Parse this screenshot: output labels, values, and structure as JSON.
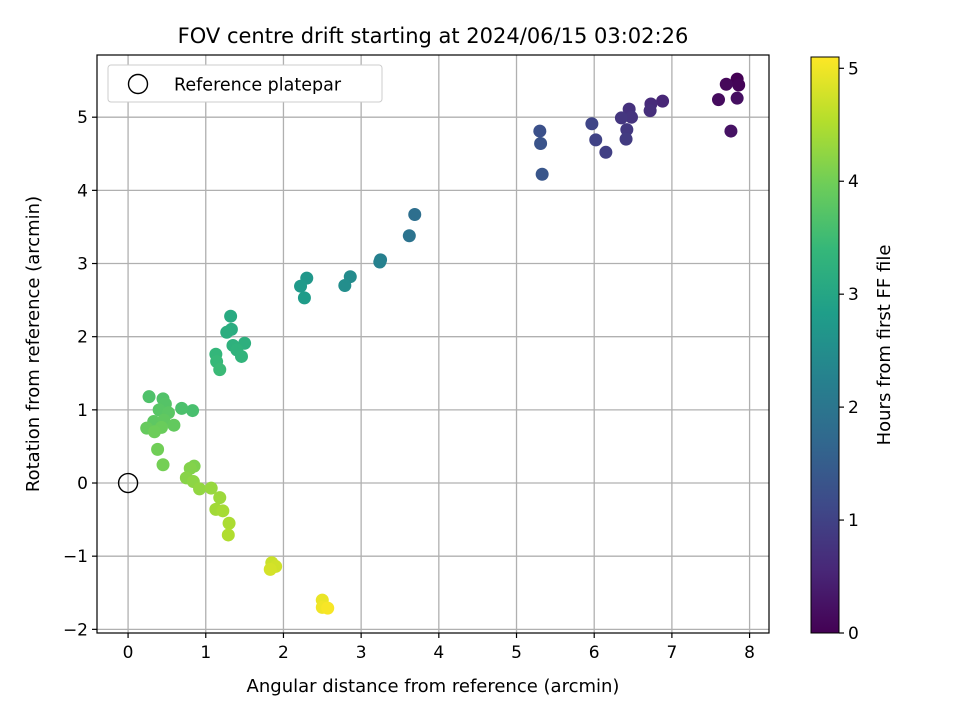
{
  "chart_data": {
    "type": "scatter",
    "title": "FOV centre drift starting at 2024/06/15 03:02:26",
    "xlabel": "Angular distance from reference (arcmin)",
    "ylabel": "Rotation from reference (arcmin)",
    "xlim": [
      -0.4,
      8.25
    ],
    "ylim": [
      -2.05,
      5.85
    ],
    "xticks": [
      0,
      1,
      2,
      3,
      4,
      5,
      6,
      7,
      8
    ],
    "xtick_labels": [
      "0",
      "1",
      "2",
      "3",
      "4",
      "5",
      "6",
      "7",
      "8"
    ],
    "yticks": [
      -2,
      -1,
      0,
      1,
      2,
      3,
      4,
      5
    ],
    "ytick_labels": [
      "−2",
      "−1",
      "0",
      "1",
      "2",
      "3",
      "4",
      "5"
    ],
    "grid": true,
    "legend": {
      "position": "top-left",
      "entries": [
        "Reference platepar"
      ]
    },
    "reference_point": {
      "label": "Reference platepar",
      "x": 0,
      "y": 0,
      "marker": "open-circle"
    },
    "colorbar": {
      "label": "Hours from first FF file",
      "colormap": "viridis",
      "range": [
        0,
        5.1
      ],
      "ticks": [
        0,
        1,
        2,
        3,
        4,
        5
      ],
      "tick_labels": [
        "0",
        "1",
        "2",
        "3",
        "4",
        "5"
      ]
    },
    "series": [
      {
        "points": [
          {
            "x": 7.84,
            "y": 5.52,
            "c": 0.0
          },
          {
            "x": 7.86,
            "y": 5.44,
            "c": 0.05
          },
          {
            "x": 7.7,
            "y": 5.45,
            "c": 0.1
          },
          {
            "x": 7.6,
            "y": 5.24,
            "c": 0.15
          },
          {
            "x": 7.84,
            "y": 5.26,
            "c": 0.2
          },
          {
            "x": 7.76,
            "y": 4.81,
            "c": 0.25
          },
          {
            "x": 6.88,
            "y": 5.22,
            "c": 0.55
          },
          {
            "x": 6.73,
            "y": 5.18,
            "c": 0.62
          },
          {
            "x": 6.72,
            "y": 5.09,
            "c": 0.68
          },
          {
            "x": 6.45,
            "y": 5.11,
            "c": 0.72
          },
          {
            "x": 6.48,
            "y": 5.0,
            "c": 0.76
          },
          {
            "x": 6.35,
            "y": 4.99,
            "c": 0.8
          },
          {
            "x": 6.42,
            "y": 4.83,
            "c": 0.84
          },
          {
            "x": 6.41,
            "y": 4.7,
            "c": 0.88
          },
          {
            "x": 6.15,
            "y": 4.52,
            "c": 0.95
          },
          {
            "x": 6.02,
            "y": 4.69,
            "c": 1.0
          },
          {
            "x": 5.97,
            "y": 4.91,
            "c": 1.05
          },
          {
            "x": 5.3,
            "y": 4.81,
            "c": 1.25
          },
          {
            "x": 5.31,
            "y": 4.64,
            "c": 1.3
          },
          {
            "x": 5.33,
            "y": 4.22,
            "c": 1.36
          },
          {
            "x": 3.69,
            "y": 3.67,
            "c": 1.85
          },
          {
            "x": 3.62,
            "y": 3.38,
            "c": 1.95
          },
          {
            "x": 3.25,
            "y": 3.05,
            "c": 2.2
          },
          {
            "x": 3.24,
            "y": 3.02,
            "c": 2.25
          },
          {
            "x": 2.86,
            "y": 2.82,
            "c": 2.45
          },
          {
            "x": 2.79,
            "y": 2.7,
            "c": 2.5
          },
          {
            "x": 2.3,
            "y": 2.8,
            "c": 2.7
          },
          {
            "x": 2.22,
            "y": 2.69,
            "c": 2.75
          },
          {
            "x": 2.27,
            "y": 2.53,
            "c": 2.8
          },
          {
            "x": 1.32,
            "y": 2.28,
            "c": 3.1
          },
          {
            "x": 1.33,
            "y": 2.1,
            "c": 3.15
          },
          {
            "x": 1.27,
            "y": 2.06,
            "c": 3.18
          },
          {
            "x": 1.5,
            "y": 1.91,
            "c": 3.22
          },
          {
            "x": 1.35,
            "y": 1.88,
            "c": 3.25
          },
          {
            "x": 1.4,
            "y": 1.82,
            "c": 3.28
          },
          {
            "x": 1.46,
            "y": 1.73,
            "c": 3.32
          },
          {
            "x": 1.13,
            "y": 1.76,
            "c": 3.38
          },
          {
            "x": 1.14,
            "y": 1.66,
            "c": 3.42
          },
          {
            "x": 1.18,
            "y": 1.55,
            "c": 3.46
          },
          {
            "x": 0.83,
            "y": 0.99,
            "c": 3.6
          },
          {
            "x": 0.69,
            "y": 1.02,
            "c": 3.63
          },
          {
            "x": 0.27,
            "y": 1.18,
            "c": 3.66
          },
          {
            "x": 0.45,
            "y": 1.15,
            "c": 3.69
          },
          {
            "x": 0.48,
            "y": 1.08,
            "c": 3.72
          },
          {
            "x": 0.4,
            "y": 1.0,
            "c": 3.75
          },
          {
            "x": 0.52,
            "y": 0.96,
            "c": 3.78
          },
          {
            "x": 0.33,
            "y": 0.84,
            "c": 3.81
          },
          {
            "x": 0.46,
            "y": 0.86,
            "c": 3.84
          },
          {
            "x": 0.59,
            "y": 0.79,
            "c": 3.87
          },
          {
            "x": 0.24,
            "y": 0.75,
            "c": 3.9
          },
          {
            "x": 0.43,
            "y": 0.76,
            "c": 3.93
          },
          {
            "x": 0.34,
            "y": 0.7,
            "c": 3.96
          },
          {
            "x": 0.38,
            "y": 0.46,
            "c": 3.99
          },
          {
            "x": 0.45,
            "y": 0.25,
            "c": 4.02
          },
          {
            "x": 0.85,
            "y": 0.23,
            "c": 4.1
          },
          {
            "x": 0.8,
            "y": 0.2,
            "c": 4.14
          },
          {
            "x": 0.75,
            "y": 0.07,
            "c": 4.18
          },
          {
            "x": 0.84,
            "y": 0.02,
            "c": 4.22
          },
          {
            "x": 0.92,
            "y": -0.08,
            "c": 4.26
          },
          {
            "x": 1.07,
            "y": -0.07,
            "c": 4.3
          },
          {
            "x": 1.18,
            "y": -0.2,
            "c": 4.34
          },
          {
            "x": 1.13,
            "y": -0.36,
            "c": 4.38
          },
          {
            "x": 1.22,
            "y": -0.38,
            "c": 4.42
          },
          {
            "x": 1.3,
            "y": -0.55,
            "c": 4.46
          },
          {
            "x": 1.29,
            "y": -0.71,
            "c": 4.5
          },
          {
            "x": 1.85,
            "y": -1.09,
            "c": 4.7
          },
          {
            "x": 1.9,
            "y": -1.14,
            "c": 4.74
          },
          {
            "x": 1.83,
            "y": -1.18,
            "c": 4.78
          },
          {
            "x": 2.5,
            "y": -1.6,
            "c": 4.95
          },
          {
            "x": 2.5,
            "y": -1.7,
            "c": 5.0
          },
          {
            "x": 2.57,
            "y": -1.71,
            "c": 5.05
          }
        ]
      }
    ]
  }
}
